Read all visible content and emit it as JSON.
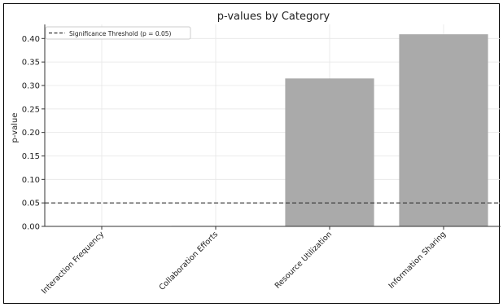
{
  "chart_data": {
    "type": "bar",
    "title": "p-values by Category",
    "xlabel": "",
    "ylabel": "p-value",
    "categories": [
      "Interaction Frequency",
      "Collaboration Efforts",
      "Resource Utilization",
      "Information Sharing"
    ],
    "values": [
      0.0,
      0.001,
      0.315,
      0.409
    ],
    "ylim": [
      0,
      0.43
    ],
    "yticks": [
      0.0,
      0.05,
      0.1,
      0.15,
      0.2,
      0.25,
      0.3,
      0.35,
      0.4
    ],
    "ytick_labels": [
      "0.00",
      "0.05",
      "0.10",
      "0.15",
      "0.20",
      "0.25",
      "0.30",
      "0.35",
      "0.40"
    ],
    "grid": true,
    "bar_color": "#aaaaaa",
    "threshold": {
      "value": 0.05,
      "label": "Significance Threshold (p = 0.05)",
      "style": "dashed",
      "color": "#333333"
    },
    "legend_position": "top-left"
  }
}
